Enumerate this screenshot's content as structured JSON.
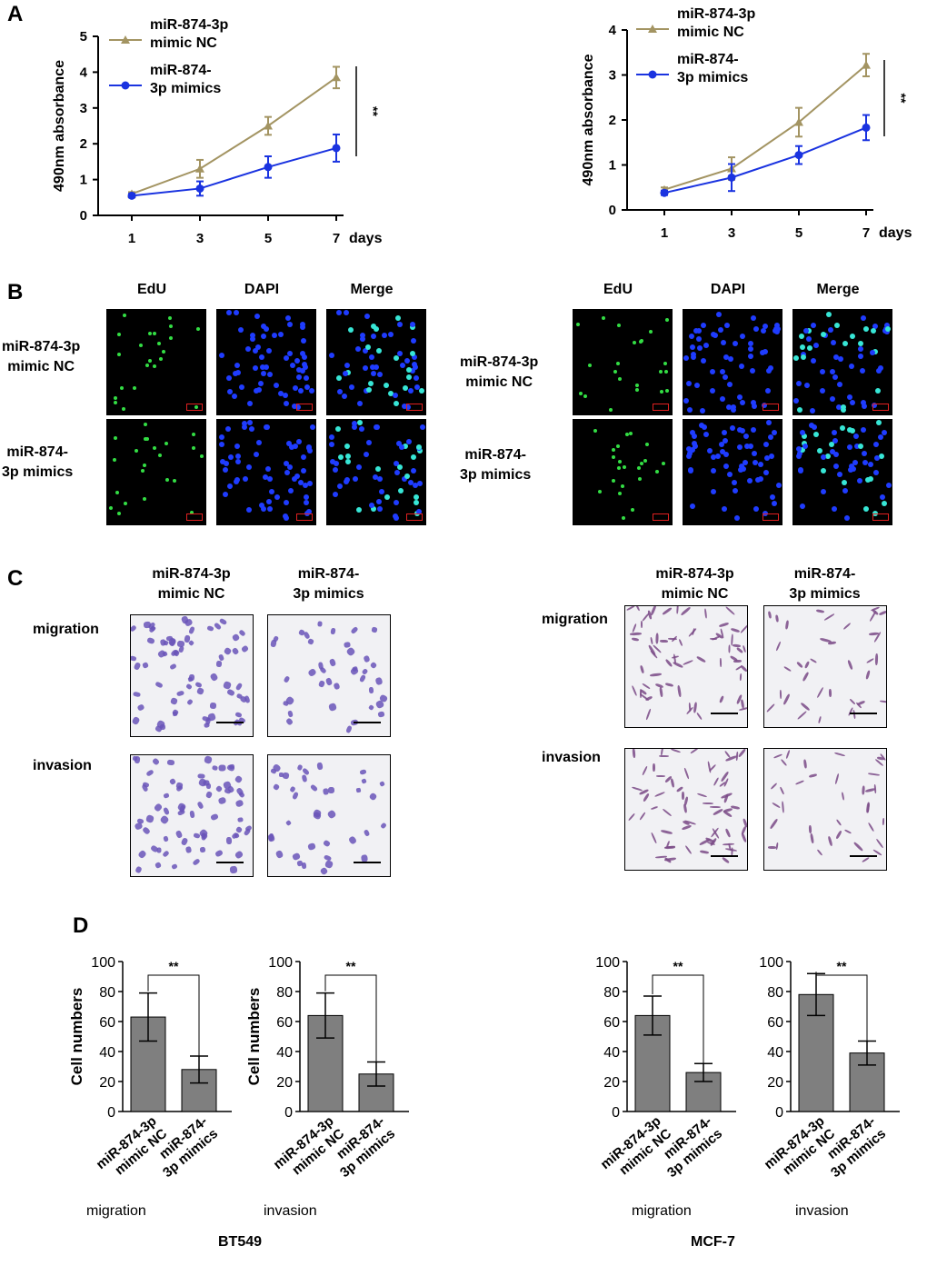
{
  "panels": {
    "a": "A",
    "b": "B",
    "c": "C",
    "d": "D"
  },
  "cell_lines": {
    "left": "BT549",
    "right": "MCF-7"
  },
  "chart_data": [
    {
      "type": "line",
      "panel": "A-BT549",
      "x": [
        1,
        3,
        5,
        7
      ],
      "xlabel": "days",
      "ylabel": "490nm absorbance",
      "ylim": [
        0,
        5
      ],
      "yticks": [
        0,
        1,
        2,
        3,
        4,
        5
      ],
      "series": [
        {
          "name": "miR-874-3p mimic NC",
          "color": "#a39462",
          "marker": "triangle",
          "values": [
            0.6,
            1.3,
            2.5,
            3.85
          ],
          "err": [
            0.05,
            0.25,
            0.25,
            0.3
          ]
        },
        {
          "name": "miR-874-3p mimics",
          "color": "#1a33e0",
          "marker": "circle",
          "values": [
            0.55,
            0.75,
            1.35,
            1.88
          ],
          "err": [
            0.05,
            0.2,
            0.3,
            0.38
          ]
        }
      ],
      "significance": "**"
    },
    {
      "type": "line",
      "panel": "A-MCF-7",
      "x": [
        1,
        3,
        5,
        7
      ],
      "xlabel": "days",
      "ylabel": "490nm absorbance",
      "ylim": [
        0,
        4
      ],
      "yticks": [
        0,
        1,
        2,
        3,
        4
      ],
      "series": [
        {
          "name": "miR-874-3p mimic NC",
          "color": "#a39462",
          "marker": "triangle",
          "values": [
            0.45,
            0.92,
            1.95,
            3.22
          ],
          "err": [
            0.05,
            0.25,
            0.32,
            0.25
          ]
        },
        {
          "name": "miR-874-3p mimics",
          "color": "#1a33e0",
          "marker": "circle",
          "values": [
            0.38,
            0.72,
            1.22,
            1.83
          ],
          "err": [
            0.05,
            0.3,
            0.2,
            0.28
          ]
        }
      ],
      "significance": "**"
    },
    {
      "type": "bar",
      "panel": "D-BT549-migration",
      "ylabel": "Cell numbers",
      "xlabel": "migration",
      "categories": [
        "miR-874-3p mimic NC",
        "miR-874-3p mimics"
      ],
      "values": [
        63,
        28
      ],
      "err": [
        16,
        9
      ],
      "ylim": [
        0,
        100
      ],
      "yticks": [
        0,
        20,
        40,
        60,
        80,
        100
      ],
      "significance": "**"
    },
    {
      "type": "bar",
      "panel": "D-BT549-invasion",
      "ylabel": "Cell numbers",
      "xlabel": "invasion",
      "categories": [
        "miR-874-3p mimic NC",
        "miR-874-3p mimics"
      ],
      "values": [
        64,
        25
      ],
      "err": [
        15,
        8
      ],
      "ylim": [
        0,
        100
      ],
      "yticks": [
        0,
        20,
        40,
        60,
        80,
        100
      ],
      "significance": "**"
    },
    {
      "type": "bar",
      "panel": "D-MCF-7-migration",
      "ylabel": "",
      "xlabel": "migration",
      "categories": [
        "miR-874-3p mimic NC",
        "miR-874-3p mimics"
      ],
      "values": [
        64,
        26
      ],
      "err": [
        13,
        6
      ],
      "ylim": [
        0,
        100
      ],
      "yticks": [
        0,
        20,
        40,
        60,
        80,
        100
      ],
      "significance": "**"
    },
    {
      "type": "bar",
      "panel": "D-MCF-7-invasion",
      "ylabel": "",
      "xlabel": "invasion",
      "categories": [
        "miR-874-3p mimic NC",
        "miR-874-3p mimics"
      ],
      "values": [
        78,
        39
      ],
      "err": [
        14,
        8
      ],
      "ylim": [
        0,
        100
      ],
      "yticks": [
        0,
        20,
        40,
        60,
        80,
        100
      ],
      "significance": "**"
    }
  ],
  "panel_b": {
    "columns": [
      "EdU",
      "DAPI",
      "Merge"
    ],
    "rows": [
      "miR-874-3p\nmimic NC",
      "miR-874-\n3p mimics"
    ]
  },
  "panel_c": {
    "columns": [
      "miR-874-3p\nmimic NC",
      "miR-874-\n3p mimics"
    ],
    "rows": [
      "migration",
      "invasion"
    ]
  }
}
